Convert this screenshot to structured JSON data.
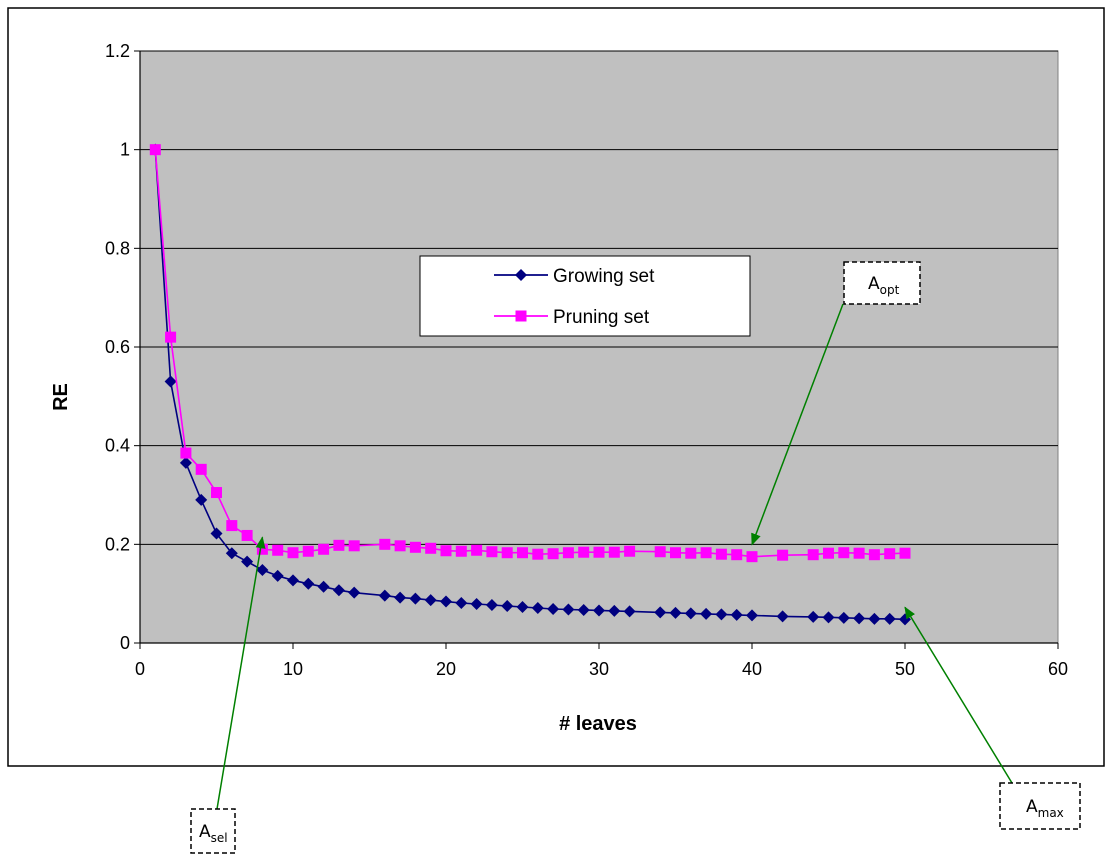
{
  "chart_data": {
    "type": "line",
    "title": "",
    "xlabel": "# leaves",
    "ylabel": "RE",
    "xlim": [
      0,
      60
    ],
    "ylim": [
      0,
      1.2
    ],
    "x_ticks": [
      "0",
      "10",
      "20",
      "30",
      "40",
      "50",
      "60"
    ],
    "y_ticks": [
      "0",
      "0.2",
      "0.4",
      "0.6",
      "0.8",
      "1",
      "1.2"
    ],
    "grid": "horizontal",
    "legend_placement": "center",
    "colors": {
      "plot_background": "#c0c0c0",
      "growing": "#000080",
      "pruning": "#ff00ff",
      "annotation_arrow": "#008000"
    },
    "series": [
      {
        "name": "Growing set",
        "marker": "diamond",
        "points": [
          [
            1,
            1.0
          ],
          [
            2,
            0.53
          ],
          [
            3,
            0.365
          ],
          [
            4,
            0.29
          ],
          [
            5,
            0.222
          ],
          [
            6,
            0.182
          ],
          [
            7,
            0.165
          ],
          [
            8,
            0.148
          ],
          [
            9,
            0.136
          ],
          [
            10,
            0.127
          ],
          [
            11,
            0.12
          ],
          [
            12,
            0.114
          ],
          [
            13,
            0.107
          ],
          [
            14,
            0.102
          ],
          [
            16,
            0.096
          ],
          [
            17,
            0.092
          ],
          [
            18,
            0.09
          ],
          [
            19,
            0.087
          ],
          [
            20,
            0.084
          ],
          [
            21,
            0.081
          ],
          [
            22,
            0.079
          ],
          [
            23,
            0.077
          ],
          [
            24,
            0.075
          ],
          [
            25,
            0.073
          ],
          [
            26,
            0.071
          ],
          [
            27,
            0.069
          ],
          [
            28,
            0.068
          ],
          [
            29,
            0.067
          ],
          [
            30,
            0.066
          ],
          [
            31,
            0.065
          ],
          [
            32,
            0.064
          ],
          [
            34,
            0.062
          ],
          [
            35,
            0.061
          ],
          [
            36,
            0.06
          ],
          [
            37,
            0.059
          ],
          [
            38,
            0.058
          ],
          [
            39,
            0.057
          ],
          [
            40,
            0.056
          ],
          [
            42,
            0.054
          ],
          [
            44,
            0.053
          ],
          [
            45,
            0.052
          ],
          [
            46,
            0.051
          ],
          [
            47,
            0.05
          ],
          [
            48,
            0.049
          ],
          [
            49,
            0.049
          ],
          [
            50,
            0.048
          ]
        ]
      },
      {
        "name": "Pruning set",
        "marker": "square",
        "points": [
          [
            1,
            1.0
          ],
          [
            2,
            0.62
          ],
          [
            3,
            0.385
          ],
          [
            4,
            0.352
          ],
          [
            5,
            0.305
          ],
          [
            6,
            0.238
          ],
          [
            7,
            0.218
          ],
          [
            8,
            0.19
          ],
          [
            9,
            0.188
          ],
          [
            10,
            0.183
          ],
          [
            11,
            0.186
          ],
          [
            12,
            0.19
          ],
          [
            13,
            0.198
          ],
          [
            14,
            0.197
          ],
          [
            16,
            0.2
          ],
          [
            17,
            0.197
          ],
          [
            18,
            0.194
          ],
          [
            19,
            0.192
          ],
          [
            20,
            0.187
          ],
          [
            21,
            0.186
          ],
          [
            22,
            0.188
          ],
          [
            23,
            0.185
          ],
          [
            24,
            0.183
          ],
          [
            25,
            0.183
          ],
          [
            26,
            0.18
          ],
          [
            27,
            0.181
          ],
          [
            28,
            0.183
          ],
          [
            29,
            0.184
          ],
          [
            30,
            0.184
          ],
          [
            31,
            0.184
          ],
          [
            32,
            0.186
          ],
          [
            34,
            0.185
          ],
          [
            35,
            0.183
          ],
          [
            36,
            0.182
          ],
          [
            37,
            0.183
          ],
          [
            38,
            0.18
          ],
          [
            39,
            0.179
          ],
          [
            40,
            0.175
          ],
          [
            42,
            0.178
          ],
          [
            44,
            0.179
          ],
          [
            45,
            0.182
          ],
          [
            46,
            0.183
          ],
          [
            47,
            0.182
          ],
          [
            48,
            0.179
          ],
          [
            49,
            0.181
          ],
          [
            50,
            0.182
          ]
        ]
      }
    ],
    "annotations": [
      {
        "base": "A",
        "sub": "opt",
        "points_to": [
          40,
          0.175
        ]
      },
      {
        "base": "A",
        "sub": "sel",
        "points_to": [
          8,
          0.19
        ]
      },
      {
        "base": "A",
        "sub": "max",
        "points_to": [
          50,
          0.048
        ]
      }
    ]
  }
}
